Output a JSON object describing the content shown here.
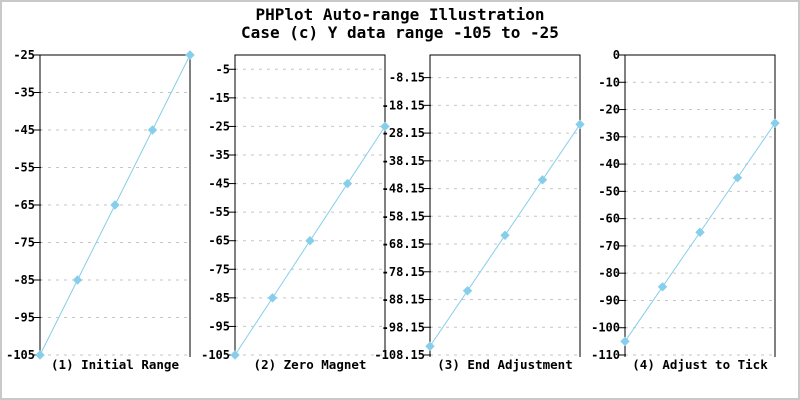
{
  "page": {
    "title_line1": "PHPlot Auto-range Illustration",
    "title_line2": "Case (c) Y data range -105 to -25"
  },
  "colors": {
    "line": "#87CEEB",
    "marker": "#87CEEB",
    "grid": "#c6c6c6",
    "axis": "#000000",
    "text": "#000000",
    "background": "#ffffff",
    "frame_border": "#c9c9c9"
  },
  "chart_data": [
    {
      "type": "line",
      "title": "(1) Initial Range",
      "x": [
        0,
        1,
        2,
        3,
        4
      ],
      "values": [
        -105,
        -85,
        -65,
        -45,
        -25
      ],
      "ylim": [
        -105,
        -25
      ],
      "y_ticks": [
        -25,
        -35,
        -45,
        -55,
        -65,
        -75,
        -85,
        -95,
        -105
      ],
      "y_tick_labels": [
        "-25",
        "-35",
        "-45",
        "-55",
        "-65",
        "-75",
        "-85",
        "-95",
        "-105"
      ],
      "xlabel": "",
      "ylabel": "",
      "grid": true,
      "legend": null,
      "marker": "diamond"
    },
    {
      "type": "line",
      "title": "(2) Zero Magnet",
      "x": [
        0,
        1,
        2,
        3,
        4
      ],
      "values": [
        -105,
        -85,
        -65,
        -45,
        -25
      ],
      "ylim": [
        -105,
        0
      ],
      "y_ticks": [
        -5,
        -15,
        -25,
        -35,
        -45,
        -55,
        -65,
        -75,
        -85,
        -95,
        -105
      ],
      "y_tick_labels": [
        "-5",
        "-15",
        "-25",
        "-35",
        "-45",
        "-55",
        "-65",
        "-75",
        "-85",
        "-95",
        "-105"
      ],
      "xlabel": "",
      "ylabel": "",
      "grid": true,
      "legend": null,
      "marker": "diamond"
    },
    {
      "type": "line",
      "title": "(3) End Adjustment",
      "x": [
        0,
        1,
        2,
        3,
        4
      ],
      "values": [
        -105,
        -85,
        -65,
        -45,
        -25
      ],
      "ylim": [
        -108.15,
        0
      ],
      "y_ticks": [
        -8.15,
        -18.15,
        -28.15,
        -38.15,
        -48.15,
        -58.15,
        -68.15,
        -78.15,
        -88.15,
        -98.15,
        -108.15
      ],
      "y_tick_labels": [
        "-8.15",
        "-18.15",
        "-28.15",
        "-38.15",
        "-48.15",
        "-58.15",
        "-68.15",
        "-78.15",
        "-88.15",
        "-98.15",
        "-108.15"
      ],
      "xlabel": "",
      "ylabel": "",
      "grid": true,
      "legend": null,
      "marker": "diamond"
    },
    {
      "type": "line",
      "title": "(4) Adjust to Tick",
      "x": [
        0,
        1,
        2,
        3,
        4
      ],
      "values": [
        -105,
        -85,
        -65,
        -45,
        -25
      ],
      "ylim": [
        -110,
        0
      ],
      "y_ticks": [
        0,
        -10,
        -20,
        -30,
        -40,
        -50,
        -60,
        -70,
        -80,
        -90,
        -100,
        -110
      ],
      "y_tick_labels": [
        "0",
        "-10",
        "-20",
        "-30",
        "-40",
        "-50",
        "-60",
        "-70",
        "-80",
        "-90",
        "-100",
        "-110"
      ],
      "xlabel": "",
      "ylabel": "",
      "grid": true,
      "legend": null,
      "marker": "diamond"
    }
  ]
}
